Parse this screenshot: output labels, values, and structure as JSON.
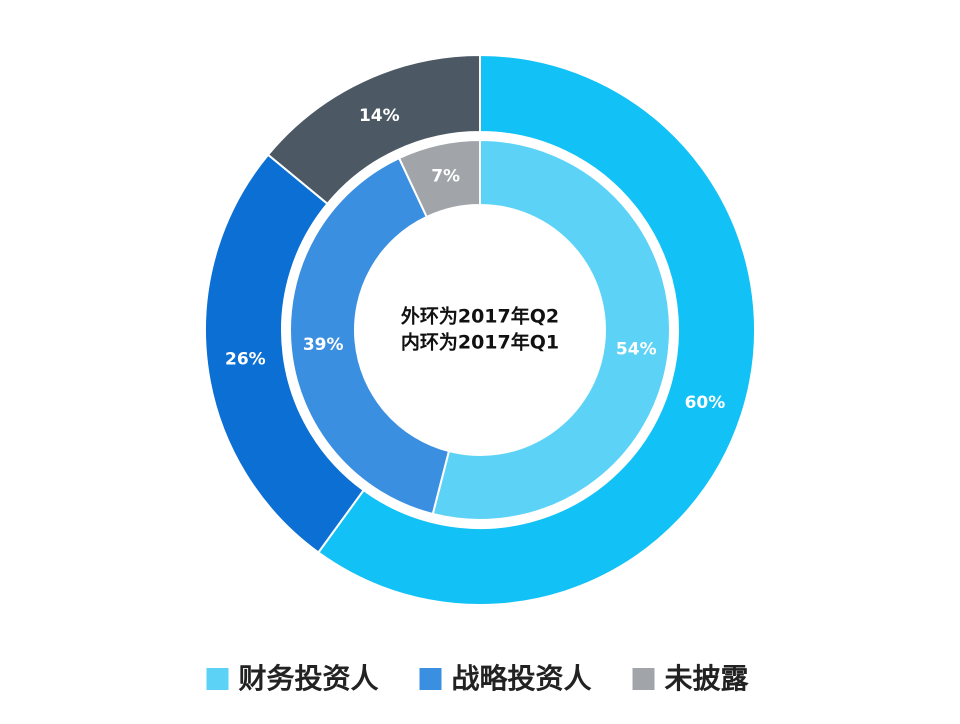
{
  "chart_data": {
    "type": "donut",
    "categories": [
      "财务投资人",
      "战略投资人",
      "未披露"
    ],
    "legend_colors": [
      "#5cd3f6",
      "#3b8fe0",
      "#a1a5a9"
    ],
    "annotations": [
      "外环为2017年Q2",
      "内环为2017年Q1"
    ],
    "rings": [
      {
        "values": [
          60,
          26,
          14
        ],
        "value_labels": [
          "60%",
          "26%",
          "14%"
        ],
        "colors": [
          "#12c1f5",
          "#0b6fd3",
          "#4c5965"
        ]
      },
      {
        "values": [
          54,
          39,
          7
        ],
        "value_labels": [
          "54%",
          "39%",
          "7%"
        ],
        "colors": [
          "#5cd3f6",
          "#3b8fe0",
          "#a1a5a9"
        ]
      }
    ]
  }
}
